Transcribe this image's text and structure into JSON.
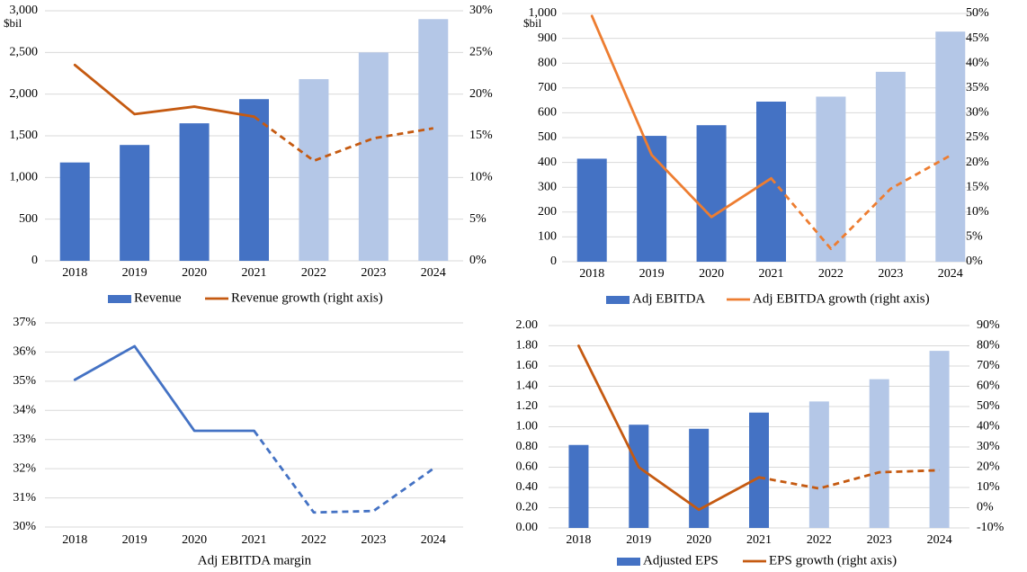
{
  "colors": {
    "actual_bar": "#4472c4",
    "forecast_bar": "#b4c7e7",
    "growth_line_dark": "#c55a11",
    "growth_line_light": "#ed7d31",
    "margin_line": "#4472c4",
    "grid": "#d9d9d9"
  },
  "chart_data": [
    {
      "type": "bar",
      "categories": [
        "2018",
        "2019",
        "2020",
        "2021",
        "2022",
        "2023",
        "2024"
      ],
      "unit_label": "$bil",
      "actual_count": 4,
      "series": [
        {
          "name": "Revenue",
          "type": "bar",
          "axis": "left",
          "values": [
            1180,
            1390,
            1650,
            1940,
            2180,
            2500,
            2900
          ]
        },
        {
          "name": "Revenue growth (right axis)",
          "type": "line",
          "axis": "right",
          "values": [
            23.5,
            17.6,
            18.5,
            17.3,
            12.0,
            14.7,
            15.9
          ]
        }
      ],
      "y_left": {
        "min": 0,
        "max": 3000,
        "step": 500,
        "ticks": [
          "0",
          "500",
          "1,000",
          "1,500",
          "2,000",
          "2,500",
          "3,000"
        ]
      },
      "y_right": {
        "min": 0,
        "max": 30,
        "step": 5,
        "ticks": [
          "0%",
          "5%",
          "10%",
          "15%",
          "20%",
          "25%",
          "30%"
        ]
      },
      "legend": "bottom",
      "grid": true
    },
    {
      "type": "bar",
      "categories": [
        "2018",
        "2019",
        "2020",
        "2021",
        "2022",
        "2023",
        "2024"
      ],
      "unit_label": "$bil",
      "actual_count": 4,
      "series": [
        {
          "name": "Adj EBITDA",
          "type": "bar",
          "axis": "left",
          "values": [
            415,
            507,
            550,
            645,
            665,
            765,
            927
          ]
        },
        {
          "name": "Adj EBITDA growth (right axis)",
          "type": "line",
          "axis": "right",
          "values": [
            49.5,
            21.5,
            9.0,
            16.8,
            2.6,
            14.7,
            21.4
          ]
        }
      ],
      "y_left": {
        "min": 0,
        "max": 1000,
        "step": 100,
        "ticks": [
          "0",
          "100",
          "200",
          "300",
          "400",
          "500",
          "600",
          "700",
          "800",
          "900",
          "1,000"
        ]
      },
      "y_right": {
        "min": 0,
        "max": 50,
        "step": 5,
        "ticks": [
          "0%",
          "5%",
          "10%",
          "15%",
          "20%",
          "25%",
          "30%",
          "35%",
          "40%",
          "45%",
          "50%"
        ]
      },
      "legend": "bottom",
      "grid": true
    },
    {
      "type": "line",
      "categories": [
        "2018",
        "2019",
        "2020",
        "2021",
        "2022",
        "2023",
        "2024"
      ],
      "actual_count": 4,
      "series": [
        {
          "name": "Adj EBITDA margin",
          "values": [
            35.05,
            36.2,
            33.3,
            33.3,
            30.5,
            30.55,
            32.0
          ]
        }
      ],
      "y_left": {
        "min": 30,
        "max": 37,
        "step": 1,
        "ticks": [
          "30%",
          "31%",
          "32%",
          "33%",
          "34%",
          "35%",
          "36%",
          "37%"
        ]
      },
      "legend": "bottom",
      "grid": true
    },
    {
      "type": "bar",
      "categories": [
        "2018",
        "2019",
        "2020",
        "2021",
        "2022",
        "2023",
        "2024"
      ],
      "actual_count": 4,
      "series": [
        {
          "name": "Adjusted EPS",
          "type": "bar",
          "axis": "left",
          "values": [
            0.82,
            1.02,
            0.98,
            1.14,
            1.25,
            1.47,
            1.75
          ]
        },
        {
          "name": "EPS growth (right axis)",
          "type": "line",
          "axis": "right",
          "values": [
            80.0,
            20.0,
            -1.0,
            15.0,
            9.5,
            17.5,
            18.5
          ]
        }
      ],
      "y_left": {
        "min": 0,
        "max": 2,
        "step": 0.2,
        "ticks": [
          "0.00",
          "0.20",
          "0.40",
          "0.60",
          "0.80",
          "1.00",
          "1.20",
          "1.40",
          "1.60",
          "1.80",
          "2.00"
        ]
      },
      "y_right": {
        "min": -10,
        "max": 90,
        "step": 10,
        "ticks": [
          "-10%",
          "0%",
          "10%",
          "20%",
          "30%",
          "40%",
          "50%",
          "60%",
          "70%",
          "80%",
          "90%"
        ]
      },
      "legend": "bottom",
      "grid": true
    }
  ]
}
